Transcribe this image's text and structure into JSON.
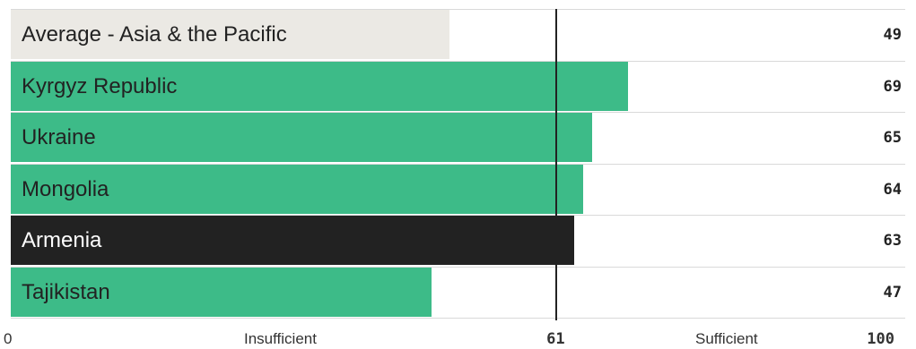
{
  "chart_data": {
    "type": "bar",
    "orientation": "horizontal",
    "categories": [
      "Average - Asia & the Pacific",
      "Kyrgyz Republic",
      "Ukraine",
      "Mongolia",
      "Armenia",
      "Tajikistan"
    ],
    "values": [
      49,
      69,
      65,
      64,
      63,
      47
    ],
    "bar_colors": [
      "#ebe9e4",
      "#3dbb88",
      "#3dbb88",
      "#3dbb88",
      "#222222",
      "#3dbb88"
    ],
    "label_colors": [
      "#222222",
      "#222222",
      "#222222",
      "#222222",
      "#ffffff",
      "#222222"
    ],
    "xlim": [
      0,
      100
    ],
    "reference_line": {
      "value": 61,
      "label": "61"
    },
    "axis_labels": {
      "min": "0",
      "max": "100",
      "left_zone": "Insufficient",
      "right_zone": "Sufficient"
    },
    "grid": false
  }
}
